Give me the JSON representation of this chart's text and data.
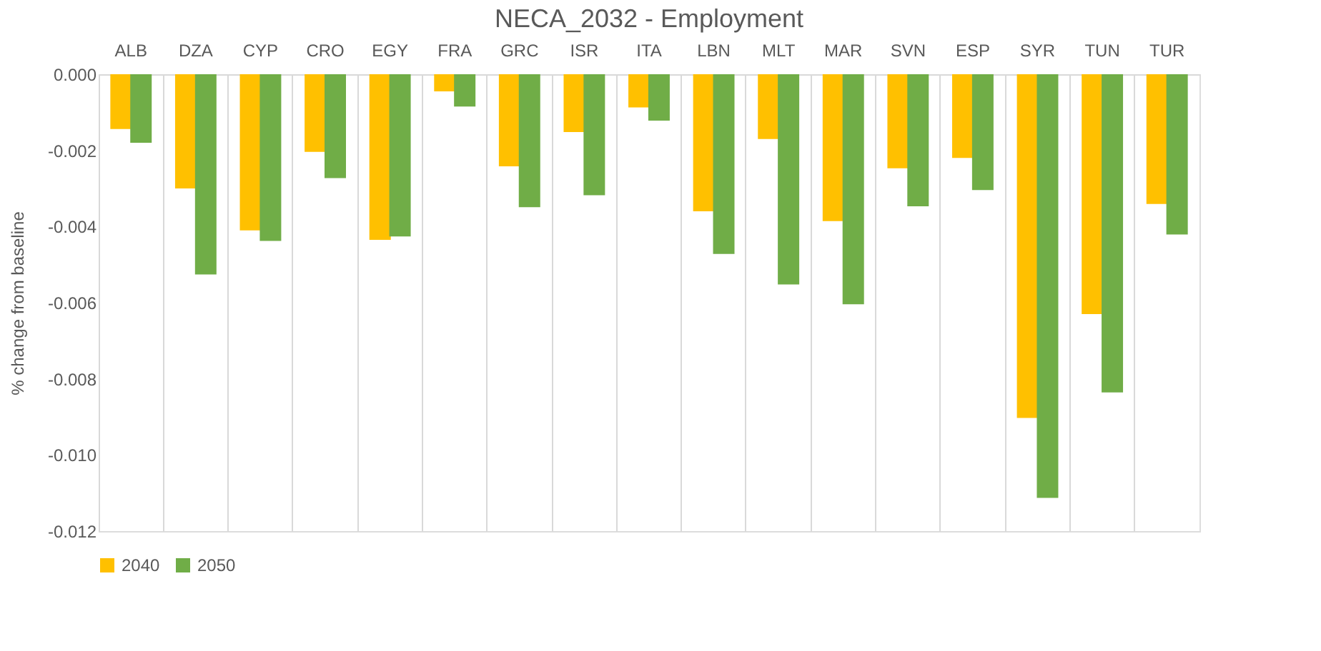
{
  "chart_data": {
    "type": "bar",
    "title": "NECA_2032 - Employment",
    "ylabel": "% change from baseline",
    "categories": [
      "ALB",
      "DZA",
      "CYP",
      "CRO",
      "EGY",
      "FRA",
      "GRC",
      "ISR",
      "ITA",
      "LBN",
      "MLT",
      "MAR",
      "SVN",
      "ESP",
      "SYR",
      "TUN",
      "TUR"
    ],
    "series": [
      {
        "name": "2040",
        "color": "#ffc000",
        "values": [
          -0.00144,
          -0.003,
          -0.0041,
          -0.00204,
          -0.00435,
          -0.00045,
          -0.00242,
          -0.00152,
          -0.00087,
          -0.0036,
          -0.0017,
          -0.00386,
          -0.00247,
          -0.0022,
          -0.00903,
          -0.0063,
          -0.00341
        ]
      },
      {
        "name": "2050",
        "color": "#70ad47",
        "values": [
          -0.0018,
          -0.00526,
          -0.00438,
          -0.00273,
          -0.00426,
          -0.00085,
          -0.00349,
          -0.00318,
          -0.00122,
          -0.00472,
          -0.00552,
          -0.00604,
          -0.00347,
          -0.00304,
          -0.01113,
          -0.00836,
          -0.00421
        ]
      }
    ],
    "ylim": [
      -0.012,
      0
    ],
    "yticks": [
      {
        "value": -0.012,
        "label": "-0.012"
      },
      {
        "value": -0.01,
        "label": "-0.010"
      },
      {
        "value": -0.008,
        "label": "-0.008"
      },
      {
        "value": -0.006,
        "label": "-0.006"
      },
      {
        "value": -0.004,
        "label": "-0.004"
      },
      {
        "value": -0.002,
        "label": "-0.002"
      },
      {
        "value": 0,
        "label": "0.000"
      }
    ],
    "grid": "x",
    "legend": "bottom"
  }
}
